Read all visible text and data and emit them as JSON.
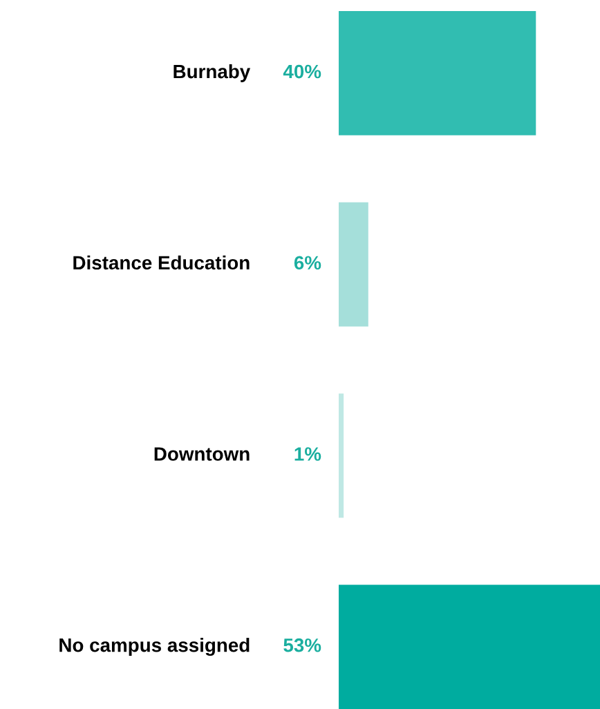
{
  "chart_data": {
    "type": "bar",
    "orientation": "horizontal",
    "categories": [
      "Burnaby",
      "Distance Education",
      "Downtown",
      "No campus assigned"
    ],
    "values": [
      40,
      6,
      1,
      53
    ],
    "value_labels": [
      "40%",
      "6%",
      "1%",
      "53%"
    ],
    "colors": [
      "#31bdb1",
      "#a5dfda",
      "#bfe8e4",
      "#00ac9f"
    ]
  }
}
